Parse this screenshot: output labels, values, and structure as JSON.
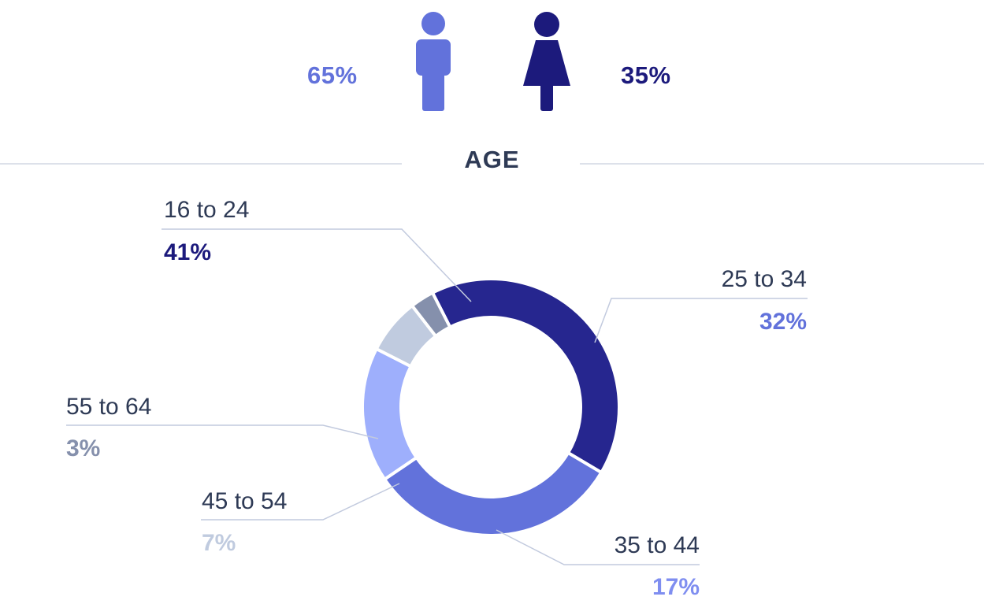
{
  "gender": {
    "male": {
      "percent": "65%",
      "icon": "male-person-icon",
      "color": "#6272db"
    },
    "female": {
      "percent": "35%",
      "icon": "female-person-icon",
      "color": "#1c1a7c"
    }
  },
  "section_title": "AGE",
  "chart_data": {
    "type": "pie",
    "title": "AGE",
    "donut": true,
    "categories": [
      "16 to 24",
      "25 to 34",
      "35 to 44",
      "45 to 54",
      "55 to 64"
    ],
    "values": [
      41,
      32,
      17,
      7,
      3
    ],
    "value_labels": [
      "41%",
      "32%",
      "17%",
      "7%",
      "3%"
    ],
    "colors": [
      "#26268f",
      "#6272db",
      "#9eaffc",
      "#c0cbdf",
      "#8590ac"
    ],
    "label_colors": [
      "#1c1a7c",
      "#6272db",
      "#7f8ef0",
      "#c0cbdf",
      "#8590ac"
    ]
  }
}
